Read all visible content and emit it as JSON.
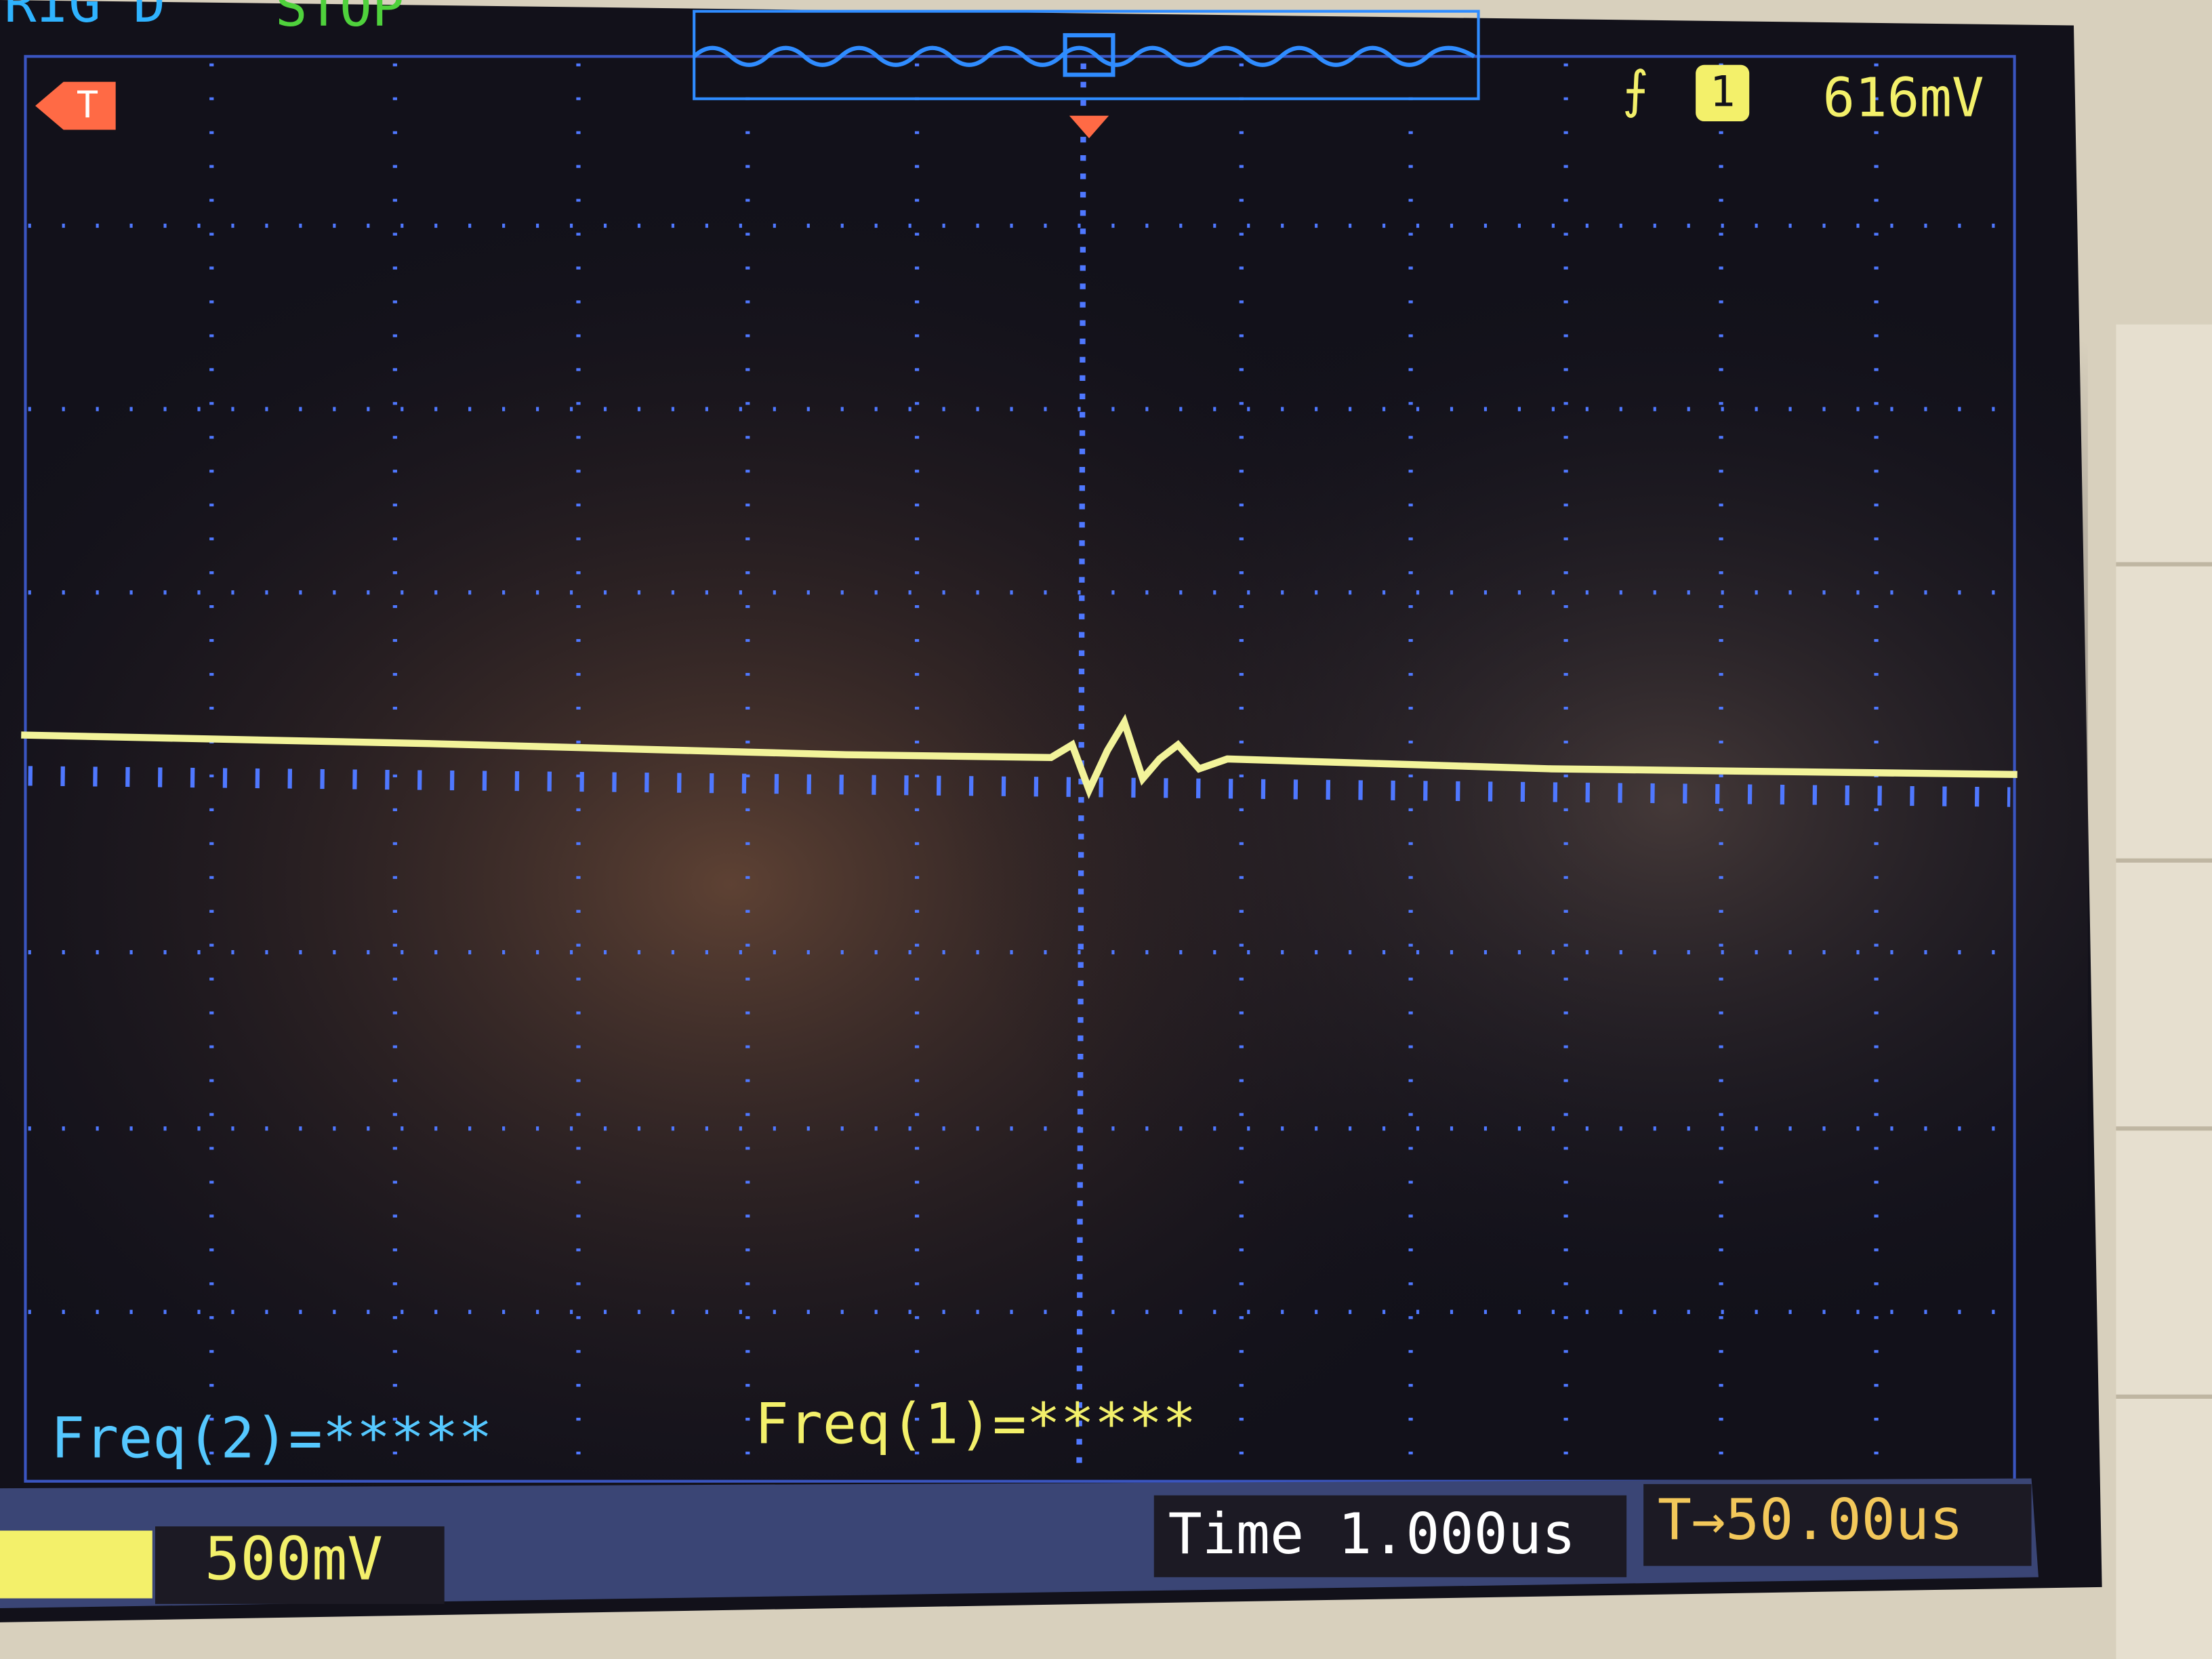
{
  "status": {
    "trigger_state": "TRIG'D",
    "run_state": "STOP"
  },
  "top_right": {
    "channel": "1",
    "trigger_level": "616mV"
  },
  "markers": {
    "trigger": "T"
  },
  "measurements": {
    "freq2": "Freq(2)=*****",
    "freq1": "Freq(1)=*****"
  },
  "bottom_bar": {
    "volts_per_div": "500mV",
    "timebase": "Time 1.000us",
    "trigger_delay": "T→50.00us"
  }
}
